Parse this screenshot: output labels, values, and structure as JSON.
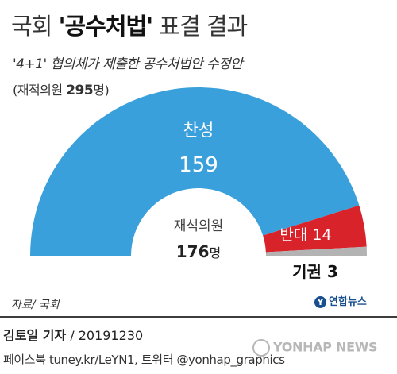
{
  "header": {
    "title_prefix": "국회 ",
    "title_bold": "'공수처법'",
    "title_suffix": " 표결 결과",
    "subtitle": "'4+1' 협의체가 제출한 공수처법안 수정안",
    "attendance_prefix": "(재적의원 ",
    "attendance_count": "295",
    "attendance_suffix": "명)"
  },
  "chart_data": {
    "type": "pie",
    "style": "semicircle-donut",
    "title": "국회 '공수처법' 표결 결과",
    "center_label": "재석의원",
    "center_value": "176",
    "center_unit": "명",
    "slices": [
      {
        "name": "찬성",
        "value": 159,
        "color": "#3aa0dc"
      },
      {
        "name": "반대",
        "value": 14,
        "color": "#d8232a"
      },
      {
        "name": "기권",
        "value": 3,
        "color": "#b3b3b3"
      }
    ]
  },
  "footer": {
    "source": "자료/ 국회",
    "logo_text": "연합뉴스",
    "reporter_name": "김토일 기자",
    "reporter_date": " / 20191230",
    "social": "페이스북 tuney.kr/LeYN1, 트위터 @yonhap_graphics",
    "watermark": "YONHAP NEWS"
  }
}
